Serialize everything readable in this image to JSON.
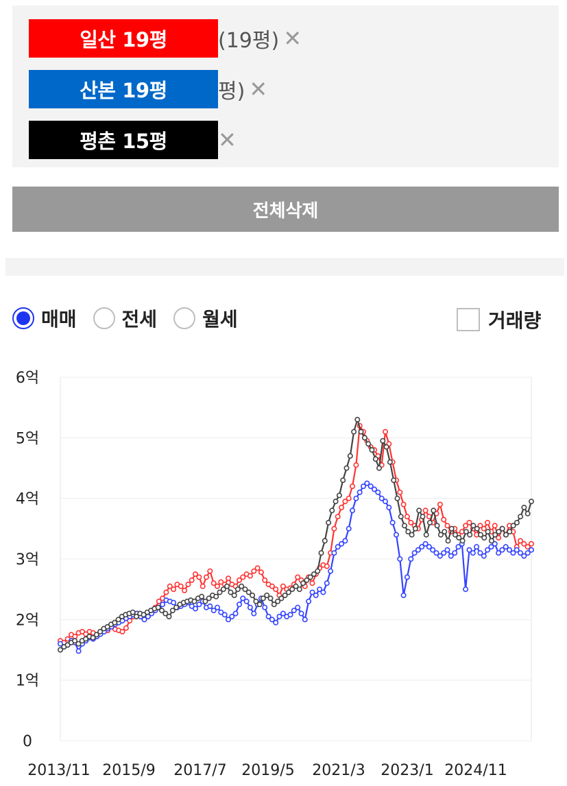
{
  "tags": [
    {
      "label": "일산 19평",
      "tail": "(19평)",
      "color": "#ff0000",
      "remove_icon": "close-icon"
    },
    {
      "label": "산본 19평",
      "tail": "평)",
      "color": "#0068c9",
      "remove_icon": "close-icon"
    },
    {
      "label": "평촌 15평",
      "tail": "",
      "color": "#000000",
      "remove_icon": "close-icon"
    }
  ],
  "close_glyph": "✕",
  "delete_all_label": "전체삭제",
  "trade_types": [
    {
      "label": "매매",
      "selected": true
    },
    {
      "label": "전세",
      "selected": false
    },
    {
      "label": "월세",
      "selected": false
    }
  ],
  "volume_label": "거래량",
  "volume_checked": false,
  "chart_data": {
    "type": "line",
    "ylabels": [
      "0",
      "1억",
      "2억",
      "3억",
      "4억",
      "5억",
      "6억"
    ],
    "ylim": [
      0,
      6
    ],
    "xlabels": [
      "2013/11",
      "2015/9",
      "2017/7",
      "2019/5",
      "2021/3",
      "2023/1",
      "2024/11"
    ],
    "grid": true,
    "series": [
      {
        "name": "일산 19평",
        "color": "#ff3333",
        "values": [
          1.65,
          1.62,
          1.68,
          1.75,
          1.72,
          1.78,
          1.8,
          1.76,
          1.8,
          1.78,
          1.72,
          1.8,
          1.85,
          1.82,
          1.88,
          1.84,
          1.82,
          1.8,
          1.86,
          1.98,
          2.05,
          2.1,
          2.05,
          2.0,
          2.05,
          2.15,
          2.2,
          2.3,
          2.35,
          2.45,
          2.55,
          2.5,
          2.58,
          2.55,
          2.48,
          2.58,
          2.65,
          2.75,
          2.7,
          2.55,
          2.7,
          2.8,
          2.6,
          2.55,
          2.62,
          2.58,
          2.68,
          2.58,
          2.55,
          2.65,
          2.7,
          2.75,
          2.72,
          2.8,
          2.85,
          2.78,
          2.65,
          2.58,
          2.55,
          2.5,
          2.4,
          2.55,
          2.5,
          2.52,
          2.58,
          2.7,
          2.65,
          2.55,
          2.7,
          2.6,
          2.75,
          2.85,
          2.9,
          2.88,
          3.1,
          3.5,
          3.7,
          3.85,
          3.95,
          4.0,
          4.2,
          4.55,
          5.2,
          5.1,
          4.95,
          4.85,
          4.8,
          4.7,
          4.55,
          5.1,
          4.9,
          4.6,
          4.3,
          4.1,
          3.9,
          3.7,
          3.6,
          3.55,
          3.5,
          3.65,
          3.8,
          3.7,
          3.6,
          3.75,
          3.9,
          3.65,
          3.55,
          3.45,
          3.5,
          3.4,
          3.45,
          3.55,
          3.6,
          3.5,
          3.4,
          3.55,
          3.5,
          3.6,
          3.45,
          3.55,
          3.35,
          3.5,
          3.4,
          3.55,
          3.45,
          3.2,
          3.3,
          3.25,
          3.2,
          3.25
        ]
      },
      {
        "name": "산본 19평",
        "color": "#3344ff",
        "values": [
          1.6,
          1.55,
          1.58,
          1.65,
          1.62,
          1.48,
          1.6,
          1.65,
          1.7,
          1.68,
          1.72,
          1.76,
          1.8,
          1.85,
          1.88,
          1.92,
          1.95,
          1.98,
          2.02,
          2.05,
          2.08,
          2.1,
          2.05,
          2.0,
          2.05,
          2.1,
          2.15,
          2.2,
          2.25,
          2.32,
          2.3,
          2.28,
          2.2,
          2.22,
          2.25,
          2.28,
          2.22,
          2.18,
          2.25,
          2.3,
          2.2,
          2.22,
          2.15,
          2.2,
          2.12,
          2.08,
          2.0,
          2.05,
          2.1,
          2.25,
          2.35,
          2.3,
          2.2,
          2.1,
          2.25,
          2.35,
          2.2,
          2.05,
          2.0,
          1.95,
          2.05,
          2.1,
          2.05,
          2.08,
          2.15,
          2.2,
          2.1,
          2.0,
          2.3,
          2.45,
          2.4,
          2.5,
          2.45,
          2.6,
          2.8,
          3.1,
          3.2,
          3.25,
          3.3,
          3.5,
          3.8,
          4.0,
          4.1,
          4.2,
          4.25,
          4.2,
          4.15,
          4.1,
          4.0,
          3.95,
          3.85,
          3.6,
          3.4,
          3.0,
          2.4,
          2.7,
          3.0,
          3.1,
          3.15,
          3.2,
          3.25,
          3.2,
          3.15,
          3.1,
          3.05,
          3.1,
          3.15,
          3.05,
          3.1,
          3.2,
          3.25,
          2.5,
          3.15,
          3.1,
          3.2,
          3.1,
          3.05,
          3.15,
          3.2,
          3.25,
          3.1,
          3.15,
          3.2,
          3.15,
          3.1,
          3.15,
          3.1,
          3.05,
          3.1,
          3.15
        ]
      },
      {
        "name": "평촌 15평",
        "color": "#444444",
        "values": [
          1.5,
          1.55,
          1.58,
          1.62,
          1.65,
          1.6,
          1.65,
          1.68,
          1.72,
          1.7,
          1.75,
          1.8,
          1.85,
          1.88,
          1.92,
          1.95,
          2.0,
          2.05,
          2.08,
          2.1,
          2.12,
          2.05,
          2.1,
          2.08,
          2.12,
          2.15,
          2.18,
          2.2,
          2.15,
          2.1,
          2.05,
          2.15,
          2.2,
          2.25,
          2.28,
          2.3,
          2.32,
          2.3,
          2.35,
          2.38,
          2.3,
          2.35,
          2.4,
          2.38,
          2.45,
          2.5,
          2.55,
          2.45,
          2.4,
          2.5,
          2.55,
          2.5,
          2.45,
          2.4,
          2.3,
          2.25,
          2.35,
          2.4,
          2.35,
          2.25,
          2.3,
          2.35,
          2.4,
          2.45,
          2.5,
          2.55,
          2.5,
          2.6,
          2.65,
          2.7,
          2.75,
          2.8,
          3.1,
          3.3,
          3.6,
          3.8,
          3.95,
          4.05,
          4.3,
          4.5,
          4.7,
          5.1,
          5.3,
          5.1,
          5.0,
          4.9,
          4.8,
          4.65,
          4.5,
          4.95,
          4.85,
          4.6,
          4.3,
          4.0,
          3.7,
          3.55,
          3.45,
          3.4,
          3.5,
          3.8,
          3.7,
          3.4,
          3.6,
          3.8,
          3.55,
          3.4,
          3.45,
          3.3,
          3.5,
          3.4,
          3.35,
          3.3,
          3.45,
          3.4,
          3.55,
          3.5,
          3.4,
          3.35,
          3.45,
          3.3,
          3.4,
          3.45,
          3.5,
          3.4,
          3.45,
          3.55,
          3.6,
          3.7,
          3.85,
          3.75,
          3.95
        ]
      }
    ]
  }
}
